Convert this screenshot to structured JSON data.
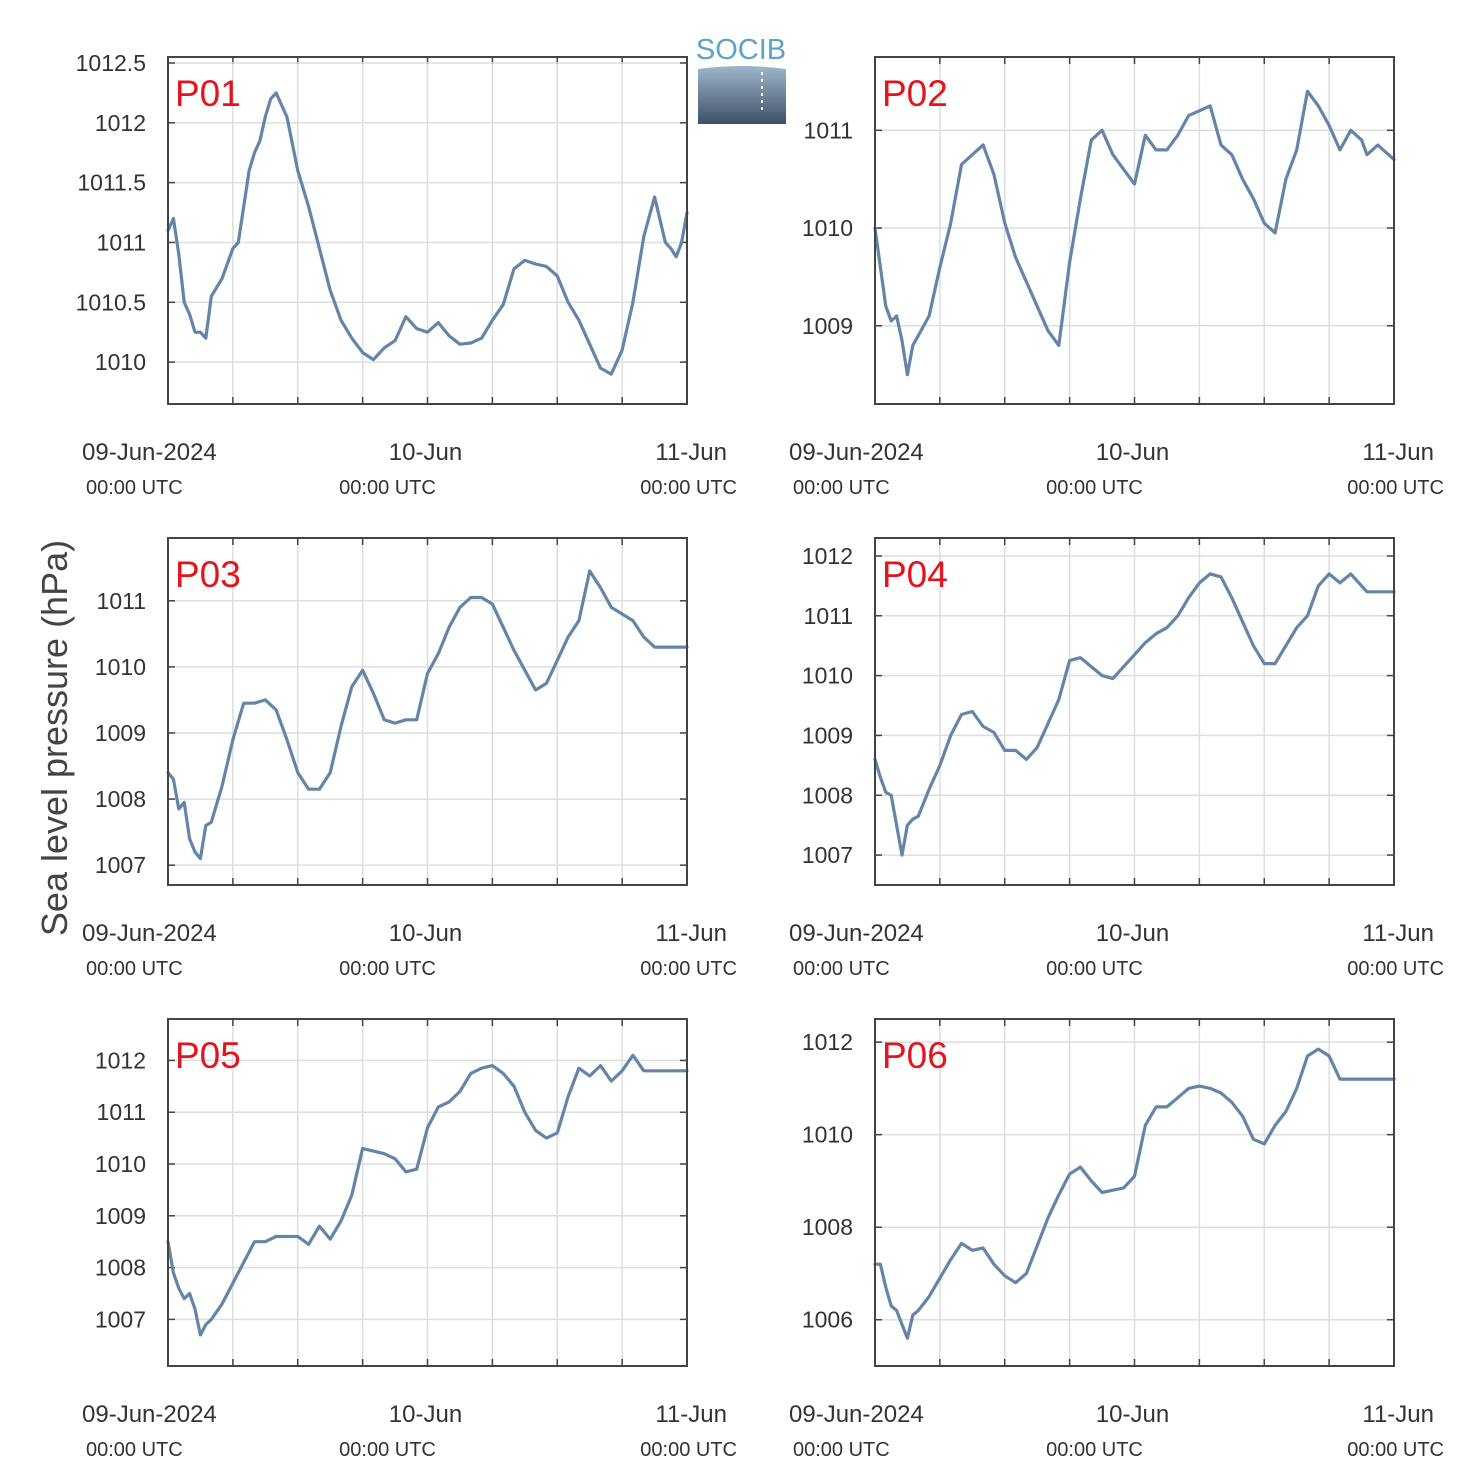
{
  "figure": {
    "ylabel": "Sea level pressure (hPa)",
    "logo_text": "SOCIB",
    "line_color": "#6585a8",
    "label_color": "#e3141c",
    "grid_color": "#dedede",
    "axis_color": "#444444"
  },
  "x_axis": {
    "ticks": [
      {
        "value": 0,
        "label": "09-Jun-2024",
        "sublabel": "00:00 UTC"
      },
      {
        "value": 24,
        "label": "10-Jun",
        "sublabel": "00:00 UTC"
      },
      {
        "value": 48,
        "label": "11-Jun",
        "sublabel": "00:00 UTC"
      }
    ],
    "gridlines_every_hours": 6,
    "xlim": [
      0,
      48
    ]
  },
  "chart_data": [
    {
      "type": "line",
      "title": "P01",
      "ylim": [
        1009.65,
        1012.55
      ],
      "yticks": [
        1010,
        1010.5,
        1011,
        1011.5,
        1012,
        1012.5
      ],
      "ytick_labels": [
        "1010",
        "1010.5",
        "1011",
        "1011.5",
        "1012",
        "1012.5"
      ],
      "x": [
        0,
        0.5,
        1,
        1.5,
        2,
        2.5,
        3,
        3.5,
        4,
        5,
        6,
        6.5,
        7,
        7.5,
        8,
        8.5,
        9,
        9.5,
        10,
        11,
        12,
        13,
        14,
        15,
        16,
        17,
        18,
        19,
        20,
        21,
        22,
        23,
        24,
        25,
        26,
        27,
        28,
        29,
        30,
        31,
        32,
        33,
        34,
        35,
        36,
        37,
        38,
        39,
        40,
        41,
        42,
        43,
        44,
        45,
        46,
        46.5,
        47,
        47.5,
        48
      ],
      "y": [
        1011.1,
        1011.2,
        1010.9,
        1010.5,
        1010.4,
        1010.25,
        1010.25,
        1010.2,
        1010.55,
        1010.7,
        1010.95,
        1011,
        1011.3,
        1011.6,
        1011.75,
        1011.85,
        1012.05,
        1012.2,
        1012.25,
        1012.05,
        1011.6,
        1011.3,
        1010.95,
        1010.6,
        1010.35,
        1010.2,
        1010.08,
        1010.02,
        1010.12,
        1010.18,
        1010.38,
        1010.28,
        1010.25,
        1010.33,
        1010.22,
        1010.15,
        1010.16,
        1010.2,
        1010.35,
        1010.48,
        1010.78,
        1010.85,
        1010.82,
        1010.8,
        1010.72,
        1010.5,
        1010.35,
        1010.15,
        1009.95,
        1009.9,
        1010.1,
        1010.5,
        1011.05,
        1011.38,
        1011,
        1010.95,
        1010.88,
        1011.0,
        1011.25
      ]
    },
    {
      "type": "line",
      "title": "P02",
      "ylim": [
        1008.2,
        1011.75
      ],
      "yticks": [
        1009,
        1010,
        1011
      ],
      "ytick_labels": [
        "1009",
        "1010",
        "1011"
      ],
      "x": [
        0,
        0.5,
        1,
        1.5,
        2,
        2.5,
        3,
        3.5,
        4,
        5,
        6,
        7,
        8,
        9,
        10,
        11,
        12,
        13,
        14,
        15,
        16,
        17,
        18,
        19,
        20,
        21,
        22,
        23,
        24,
        25,
        26,
        27,
        28,
        29,
        30,
        31,
        32,
        33,
        34,
        35,
        36,
        37,
        38,
        39,
        40,
        41,
        42,
        43,
        44,
        45,
        45.5,
        46,
        46.5,
        47,
        47.5,
        48
      ],
      "y": [
        1010,
        1009.6,
        1009.2,
        1009.05,
        1009.1,
        1008.85,
        1008.5,
        1008.8,
        1008.9,
        1009.1,
        1009.6,
        1010.05,
        1010.65,
        1010.75,
        1010.85,
        1010.55,
        1010.05,
        1009.7,
        1009.45,
        1009.2,
        1008.95,
        1008.8,
        1009.65,
        1010.3,
        1010.9,
        1011.0,
        1010.75,
        1010.6,
        1010.45,
        1010.95,
        1010.8,
        1010.8,
        1010.95,
        1011.15,
        1011.2,
        1011.25,
        1010.85,
        1010.75,
        1010.5,
        1010.3,
        1010.05,
        1009.95,
        1010.5,
        1010.8,
        1011.4,
        1011.25,
        1011.05,
        1010.8,
        1011.0,
        1010.9,
        1010.75,
        1010.8,
        1010.85,
        1010.8,
        1010.75,
        1010.7
      ]
    },
    {
      "type": "line",
      "title": "P03",
      "ylim": [
        1006.7,
        1011.95
      ],
      "yticks": [
        1007,
        1008,
        1009,
        1010,
        1011
      ],
      "ytick_labels": [
        "1007",
        "1008",
        "1009",
        "1010",
        "1011"
      ],
      "x": [
        0,
        0.5,
        1,
        1.5,
        2,
        2.5,
        3,
        3.5,
        4,
        5,
        6,
        7,
        8,
        9,
        10,
        11,
        12,
        13,
        14,
        15,
        16,
        17,
        18,
        19,
        20,
        21,
        22,
        23,
        24,
        25,
        26,
        27,
        28,
        29,
        30,
        31,
        32,
        33,
        34,
        35,
        36,
        37,
        38,
        39,
        40,
        41,
        42,
        43,
        44,
        45,
        45.5,
        46,
        46.5,
        47,
        47.5,
        48
      ],
      "y": [
        1008.4,
        1008.3,
        1007.85,
        1007.95,
        1007.4,
        1007.2,
        1007.1,
        1007.6,
        1007.65,
        1008.2,
        1008.9,
        1009.45,
        1009.45,
        1009.5,
        1009.35,
        1008.9,
        1008.4,
        1008.15,
        1008.15,
        1008.4,
        1009.1,
        1009.7,
        1009.95,
        1009.6,
        1009.2,
        1009.15,
        1009.2,
        1009.2,
        1009.9,
        1010.2,
        1010.6,
        1010.9,
        1011.05,
        1011.05,
        1010.95,
        1010.6,
        1010.25,
        1009.95,
        1009.65,
        1009.75,
        1010.1,
        1010.45,
        1010.7,
        1011.45,
        1011.2,
        1010.9,
        1010.8,
        1010.7,
        1010.45,
        1010.3,
        1010.3,
        1010.3,
        1010.3,
        1010.3,
        1010.3,
        1010.3
      ]
    },
    {
      "type": "line",
      "title": "P04",
      "ylim": [
        1006.5,
        1012.3
      ],
      "yticks": [
        1007,
        1008,
        1009,
        1010,
        1011,
        1012
      ],
      "ytick_labels": [
        "1007",
        "1008",
        "1009",
        "1010",
        "1011",
        "1012"
      ],
      "x": [
        0,
        0.5,
        1,
        1.5,
        2,
        2.5,
        3,
        3.5,
        4,
        5,
        6,
        7,
        8,
        9,
        10,
        11,
        12,
        13,
        14,
        15,
        16,
        17,
        18,
        19,
        20,
        21,
        22,
        23,
        24,
        25,
        26,
        27,
        28,
        29,
        30,
        31,
        32,
        33,
        34,
        35,
        36,
        37,
        38,
        39,
        40,
        41,
        42,
        43,
        44,
        45,
        45.5,
        46,
        46.5,
        47,
        47.5,
        48
      ],
      "y": [
        1008.6,
        1008.3,
        1008.05,
        1008.0,
        1007.5,
        1007.0,
        1007.5,
        1007.6,
        1007.65,
        1008.1,
        1008.5,
        1009.0,
        1009.35,
        1009.4,
        1009.15,
        1009.05,
        1008.75,
        1008.75,
        1008.6,
        1008.8,
        1009.2,
        1009.6,
        1010.25,
        1010.3,
        1010.15,
        1010.0,
        1009.95,
        1010.15,
        1010.35,
        1010.55,
        1010.7,
        1010.8,
        1011.0,
        1011.3,
        1011.55,
        1011.7,
        1011.65,
        1011.3,
        1010.9,
        1010.5,
        1010.2,
        1010.2,
        1010.5,
        1010.8,
        1011.0,
        1011.5,
        1011.7,
        1011.55,
        1011.7,
        1011.5,
        1011.4,
        1011.4,
        1011.4,
        1011.4,
        1011.4,
        1011.4
      ]
    },
    {
      "type": "line",
      "title": "P05",
      "ylim": [
        1006.1,
        1012.8
      ],
      "yticks": [
        1007,
        1008,
        1009,
        1010,
        1011,
        1012
      ],
      "ytick_labels": [
        "1007",
        "1008",
        "1009",
        "1010",
        "1011",
        "1012"
      ],
      "x": [
        0,
        0.5,
        1,
        1.5,
        2,
        2.5,
        3,
        3.5,
        4,
        5,
        6,
        7,
        8,
        9,
        10,
        11,
        12,
        13,
        14,
        15,
        16,
        17,
        18,
        19,
        20,
        21,
        22,
        23,
        24,
        25,
        26,
        27,
        28,
        29,
        30,
        31,
        32,
        33,
        34,
        35,
        36,
        37,
        38,
        39,
        40,
        41,
        42,
        43,
        44,
        45,
        45.5,
        46,
        46.5,
        47,
        47.5,
        48
      ],
      "y": [
        1008.5,
        1007.9,
        1007.6,
        1007.4,
        1007.5,
        1007.2,
        1006.7,
        1006.9,
        1007.0,
        1007.3,
        1007.7,
        1008.1,
        1008.5,
        1008.5,
        1008.6,
        1008.6,
        1008.6,
        1008.45,
        1008.8,
        1008.55,
        1008.9,
        1009.4,
        1010.3,
        1010.25,
        1010.2,
        1010.1,
        1009.85,
        1009.9,
        1010.7,
        1011.1,
        1011.2,
        1011.4,
        1011.75,
        1011.85,
        1011.9,
        1011.75,
        1011.5,
        1011.0,
        1010.65,
        1010.5,
        1010.6,
        1011.3,
        1011.85,
        1011.7,
        1011.9,
        1011.6,
        1011.8,
        1012.1,
        1011.8,
        1011.8,
        1011.8,
        1011.8,
        1011.8,
        1011.8,
        1011.8,
        1011.8
      ]
    },
    {
      "type": "line",
      "title": "P06",
      "ylim": [
        1005.0,
        1012.5
      ],
      "yticks": [
        1006,
        1008,
        1010,
        1012
      ],
      "ytick_labels": [
        "1006",
        "1008",
        "1010",
        "1012"
      ],
      "x": [
        0,
        0.5,
        1,
        1.5,
        2,
        2.5,
        3,
        3.5,
        4,
        5,
        6,
        7,
        8,
        9,
        10,
        11,
        12,
        13,
        14,
        15,
        16,
        17,
        18,
        19,
        20,
        21,
        22,
        23,
        24,
        25,
        26,
        27,
        28,
        29,
        30,
        31,
        32,
        33,
        34,
        35,
        36,
        37,
        38,
        39,
        40,
        41,
        42,
        43,
        44,
        45,
        45.5,
        46,
        46.5,
        47,
        47.5,
        48
      ],
      "y": [
        1007.2,
        1007.2,
        1006.7,
        1006.3,
        1006.2,
        1005.9,
        1005.6,
        1006.1,
        1006.2,
        1006.5,
        1006.9,
        1007.3,
        1007.65,
        1007.5,
        1007.55,
        1007.2,
        1006.95,
        1006.8,
        1007.0,
        1007.6,
        1008.2,
        1008.7,
        1009.15,
        1009.3,
        1009.0,
        1008.75,
        1008.8,
        1008.85,
        1009.1,
        1010.2,
        1010.6,
        1010.6,
        1010.8,
        1011.0,
        1011.05,
        1011.0,
        1010.9,
        1010.7,
        1010.4,
        1009.9,
        1009.8,
        1010.2,
        1010.5,
        1011.0,
        1011.7,
        1011.85,
        1011.7,
        1011.2,
        1011.2,
        1011.2,
        1011.2,
        1011.2,
        1011.2,
        1011.2,
        1011.2,
        1011.2
      ]
    }
  ]
}
